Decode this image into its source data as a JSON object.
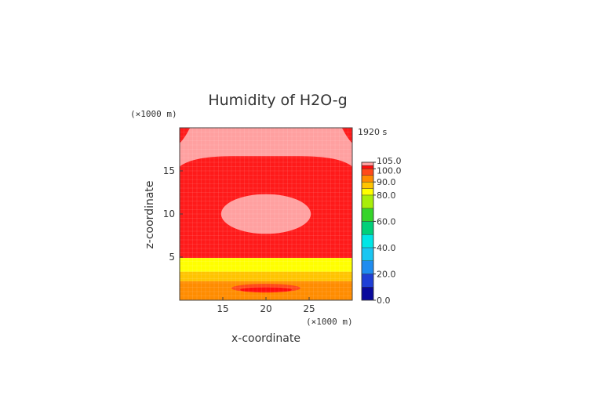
{
  "chart_data": {
    "type": "heatmap",
    "title": "Humidity of H2O-g",
    "time_label": "1920 s",
    "xlabel": "x-coordinate",
    "ylabel": "z-coordinate",
    "x_unit": "(×1000 m)",
    "z_unit": "(×1000 m)",
    "xlim": [
      10,
      30
    ],
    "zlim": [
      0,
      20
    ],
    "x_ticks": [
      "15",
      "20",
      "25"
    ],
    "z_ticks": [
      "5",
      "10",
      "15"
    ],
    "colorbar": {
      "tick_labels": [
        "0.0",
        "20.0",
        "40.0",
        "60.0",
        "80.0",
        "90.0",
        "100.0",
        "105.0"
      ],
      "bands": [
        {
          "from": 0,
          "to": 10,
          "color": "#0a0a9c"
        },
        {
          "from": 10,
          "to": 20,
          "color": "#1f3fd6"
        },
        {
          "from": 20,
          "to": 30,
          "color": "#1f8cf0"
        },
        {
          "from": 30,
          "to": 40,
          "color": "#19c6f2"
        },
        {
          "from": 40,
          "to": 50,
          "color": "#00e6e6"
        },
        {
          "from": 50,
          "to": 60,
          "color": "#00d07a"
        },
        {
          "from": 60,
          "to": 70,
          "color": "#35d42a"
        },
        {
          "from": 70,
          "to": 80,
          "color": "#a8ee0a"
        },
        {
          "from": 80,
          "to": 85,
          "color": "#ffff00"
        },
        {
          "from": 85,
          "to": 90,
          "color": "#ffc400"
        },
        {
          "from": 90,
          "to": 95,
          "color": "#ff8c00"
        },
        {
          "from": 95,
          "to": 100,
          "color": "#ff4a1a"
        },
        {
          "from": 100,
          "to": 102.5,
          "color": "#ff0d0d"
        },
        {
          "from": 102.5,
          "to": 105,
          "color": "#ffa0a0"
        }
      ]
    },
    "field_regions": [
      {
        "description_value": "humidity ~100 (red)",
        "z_range": [
          4.9,
          20
        ],
        "color": "#ff1a1a"
      },
      {
        "description_value": "humidity >102.5 (pink) top band",
        "z_range": [
          16.5,
          20
        ],
        "color": "#ffa0a0"
      },
      {
        "description_value": "humidity >102.5 (pink) centre bubble",
        "center": [
          20,
          10
        ],
        "radius_x": 5.2,
        "radius_z": 2.3,
        "color": "#ffa0a0"
      },
      {
        "description_value": "80-85 (yellow)",
        "z_range": [
          3.3,
          4.9
        ],
        "color": "#ffff00"
      },
      {
        "description_value": "85-90 (amber)",
        "z_range": [
          2.2,
          3.3
        ],
        "color": "#ffc400"
      },
      {
        "description_value": "90-95 (orange)",
        "z_range": [
          0,
          2.2
        ],
        "color": "#ff8c00"
      }
    ]
  }
}
